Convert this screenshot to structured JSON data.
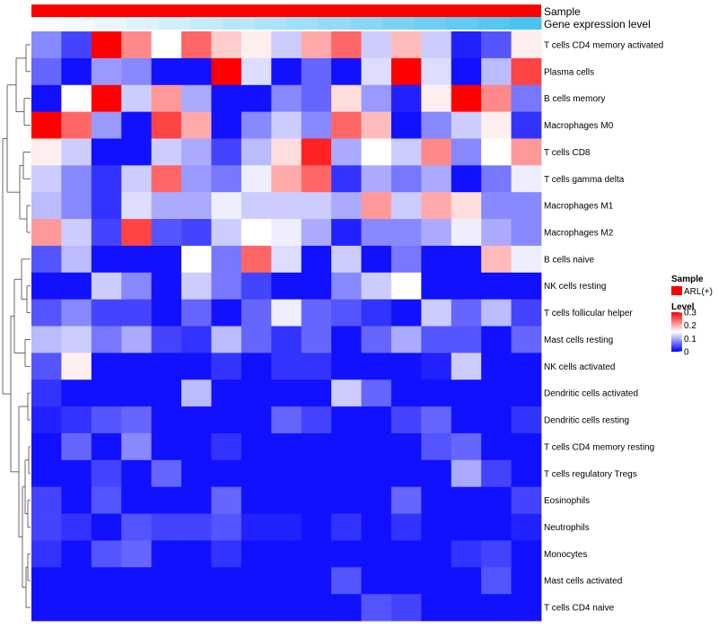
{
  "chart_data": {
    "type": "heatmap",
    "annotations": {
      "sample_label": "Sample",
      "gene_label": "Gene expression level",
      "sample_color": "#ff0000",
      "gene_colors": [
        "#ffffff",
        "#f3fbfe",
        "#e7f7fd",
        "#dbf3fc",
        "#cfeffb",
        "#c3ebfa",
        "#b7e7f9",
        "#abe3f8",
        "#9fdff7",
        "#93dbf6",
        "#87d7f5",
        "#7bd3f4",
        "#6fcff3",
        "#63cbf2",
        "#57c7f1",
        "#4bc3f0"
      ]
    },
    "rows": [
      "T cells CD4 memory activated",
      "Plasma cells",
      "B cells memory",
      "Macrophages M0",
      "T cells CD8",
      "T cells gamma delta",
      "Macrophages M1",
      "Macrophages M2",
      "B cells naive",
      "NK cells resting",
      "T cells follicular helper",
      "Mast cells resting",
      "NK cells activated",
      "Dendritic cells activated",
      "Dendritic cells resting",
      "T cells CD4 memory resting",
      "T cells regulatory  Tregs",
      "Eosinophils",
      "Neutrophils",
      "Monocytes",
      "Mast cells activated",
      "T cells CD4 naive"
    ],
    "values": [
      [
        0.08,
        0.04,
        0.3,
        0.22,
        0.15,
        0.24,
        0.18,
        0.16,
        0.12,
        0.2,
        0.24,
        0.12,
        0.19,
        0.12,
        0.02,
        0.05,
        0.16
      ],
      [
        0.06,
        0.01,
        0.09,
        0.08,
        0.01,
        0.01,
        0.3,
        0.13,
        0.01,
        0.06,
        0.01,
        0.13,
        0.3,
        0.13,
        0.01,
        0.11,
        0.26
      ],
      [
        0.01,
        0.15,
        0.3,
        0.12,
        0.21,
        0.1,
        0.01,
        0.01,
        0.08,
        0.06,
        0.17,
        0.09,
        0.02,
        0.16,
        0.3,
        0.22,
        0.07
      ],
      [
        0.3,
        0.24,
        0.09,
        0.01,
        0.26,
        0.2,
        0.01,
        0.08,
        0.12,
        0.08,
        0.24,
        0.19,
        0.01,
        0.08,
        0.12,
        0.16,
        0.03
      ],
      [
        0.16,
        0.12,
        0.01,
        0.01,
        0.12,
        0.1,
        0.04,
        0.11,
        0.17,
        0.28,
        0.1,
        0.15,
        0.12,
        0.22,
        0.08,
        0.15,
        0.21
      ],
      [
        0.12,
        0.08,
        0.03,
        0.12,
        0.24,
        0.09,
        0.07,
        0.14,
        0.2,
        0.24,
        0.03,
        0.1,
        0.07,
        0.1,
        0.01,
        0.07,
        0.14
      ],
      [
        0.11,
        0.08,
        0.03,
        0.13,
        0.1,
        0.1,
        0.14,
        0.12,
        0.12,
        0.12,
        0.1,
        0.21,
        0.12,
        0.2,
        0.17,
        0.08,
        0.08
      ],
      [
        0.21,
        0.12,
        0.04,
        0.26,
        0.05,
        0.04,
        0.12,
        0.15,
        0.14,
        0.1,
        0.02,
        0.08,
        0.08,
        0.1,
        0.14,
        0.1,
        0.08
      ],
      [
        0.05,
        0.11,
        0.01,
        0.01,
        0.01,
        0.15,
        0.07,
        0.24,
        0.13,
        0.01,
        0.12,
        0.01,
        0.07,
        0.01,
        0.01,
        0.19,
        0.14
      ],
      [
        0.01,
        0.01,
        0.12,
        0.08,
        0.01,
        0.12,
        0.07,
        0.04,
        0.01,
        0.01,
        0.08,
        0.12,
        0.15,
        0.01,
        0.01,
        0.01,
        0.01
      ],
      [
        0.05,
        0.08,
        0.04,
        0.04,
        0.01,
        0.06,
        0.01,
        0.06,
        0.14,
        0.06,
        0.05,
        0.03,
        0.01,
        0.12,
        0.06,
        0.11,
        0.04
      ],
      [
        0.11,
        0.12,
        0.07,
        0.1,
        0.04,
        0.03,
        0.11,
        0.06,
        0.03,
        0.06,
        0.01,
        0.06,
        0.1,
        0.05,
        0.05,
        0.01,
        0.06
      ],
      [
        0.05,
        0.16,
        0.01,
        0.01,
        0.01,
        0.01,
        0.03,
        0.01,
        0.03,
        0.03,
        0.01,
        0.01,
        0.01,
        0.02,
        0.12,
        0.01,
        0.01
      ],
      [
        0.03,
        0.01,
        0.01,
        0.01,
        0.01,
        0.11,
        0.01,
        0.01,
        0.01,
        0.01,
        0.12,
        0.06,
        0.01,
        0.01,
        0.01,
        0.01,
        0.01
      ],
      [
        0.02,
        0.03,
        0.05,
        0.06,
        0.01,
        0.01,
        0.01,
        0.01,
        0.06,
        0.04,
        0.01,
        0.01,
        0.04,
        0.06,
        0.01,
        0.01,
        0.03
      ],
      [
        0.01,
        0.06,
        0.01,
        0.08,
        0.01,
        0.01,
        0.03,
        0.01,
        0.01,
        0.01,
        0.01,
        0.01,
        0.01,
        0.05,
        0.06,
        0.01,
        0.01
      ],
      [
        0.01,
        0.01,
        0.04,
        0.01,
        0.06,
        0.01,
        0.01,
        0.01,
        0.01,
        0.01,
        0.01,
        0.01,
        0.01,
        0.01,
        0.1,
        0.04,
        0.01
      ],
      [
        0.04,
        0.01,
        0.05,
        0.01,
        0.01,
        0.01,
        0.06,
        0.01,
        0.01,
        0.01,
        0.01,
        0.01,
        0.06,
        0.01,
        0.01,
        0.01,
        0.04
      ],
      [
        0.04,
        0.03,
        0.01,
        0.05,
        0.04,
        0.04,
        0.05,
        0.02,
        0.02,
        0.01,
        0.03,
        0.01,
        0.03,
        0.01,
        0.01,
        0.01,
        0.02
      ],
      [
        0.03,
        0.01,
        0.05,
        0.06,
        0.01,
        0.01,
        0.03,
        0.01,
        0.01,
        0.01,
        0.01,
        0.01,
        0.01,
        0.01,
        0.03,
        0.04,
        0.01
      ],
      [
        0.01,
        0.01,
        0.01,
        0.01,
        0.01,
        0.01,
        0.01,
        0.01,
        0.01,
        0.01,
        0.05,
        0.01,
        0.01,
        0.01,
        0.01,
        0.05,
        0.01
      ],
      [
        0.01,
        0.01,
        0.01,
        0.01,
        0.01,
        0.01,
        0.01,
        0.01,
        0.01,
        0.01,
        0.01,
        0.05,
        0.04,
        0.01,
        0.01,
        0.01,
        0.01
      ]
    ],
    "color_scale": {
      "low": "#0000ff",
      "mid": "#ffffff",
      "high": "#ff0000",
      "min": 0,
      "mid_value": 0.15,
      "max": 0.3
    },
    "legend": {
      "sample_title": "Sample",
      "sample_entry": "ARL(+)",
      "level_title": "Level",
      "ticks": [
        "0.3",
        "0.2",
        "0.1",
        "0"
      ],
      "tick_values": [
        0.3,
        0.2,
        0.1,
        0
      ]
    }
  }
}
